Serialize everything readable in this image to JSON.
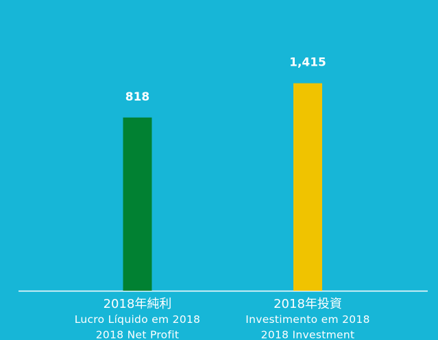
{
  "chart_data": {
    "type": "bar",
    "categories": [
      [
        "2018年純利",
        "Lucro Líquido em 2018",
        "2018 Net Profit"
      ],
      [
        "2018年投資",
        "Investimento em 2018",
        "2018 Investment"
      ]
    ],
    "values": [
      818,
      1415
    ],
    "value_labels": [
      "818",
      "1,415"
    ],
    "colors": [
      "#018132",
      "#f0c300"
    ],
    "ylim": [
      -2200,
      2150
    ]
  }
}
